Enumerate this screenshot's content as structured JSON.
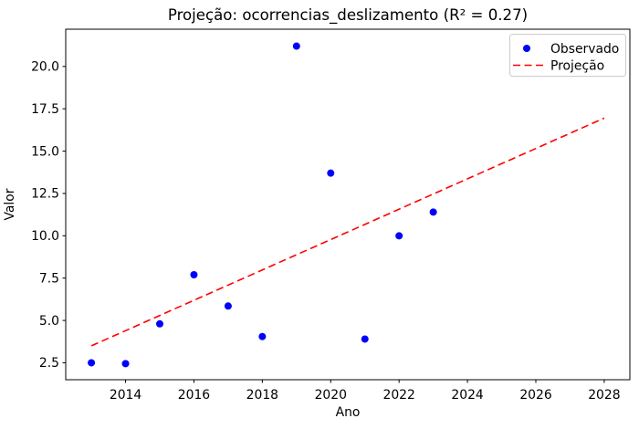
{
  "figure": {
    "title": "Projeção: ocorrencias_deslizamento (R² = 0.27)",
    "xlabel": "Ano",
    "ylabel": "Valor"
  },
  "legend": {
    "position": "upper-right",
    "items": [
      {
        "label": "Observado",
        "marker": "dot-icon",
        "color": "#0000ff"
      },
      {
        "label": "Projeção",
        "marker": "dashed-line-icon",
        "color": "#ff0000"
      }
    ]
  },
  "colors": {
    "observed": "#0000ff",
    "projection": "#ff0000",
    "spine": "#000000",
    "background": "#ffffff",
    "legend_border": "#cccccc"
  },
  "chart_data": {
    "type": "scatter",
    "title": "Projeção: ocorrencias_deslizamento (R² = 0.27)",
    "xlabel": "Ano",
    "ylabel": "Valor",
    "r_squared": 0.27,
    "grid": false,
    "xlim": [
      2012.25,
      2028.75
    ],
    "ylim": [
      1.5,
      22.2
    ],
    "x_ticks": [
      2014,
      2016,
      2018,
      2020,
      2022,
      2024,
      2026,
      2028
    ],
    "y_ticks": [
      2.5,
      5.0,
      7.5,
      10.0,
      12.5,
      15.0,
      17.5,
      20.0
    ],
    "series": [
      {
        "name": "Observado",
        "kind": "scatter",
        "color": "#0000ff",
        "x": [
          2013,
          2014,
          2015,
          2016,
          2017,
          2018,
          2019,
          2020,
          2021,
          2022,
          2023
        ],
        "y": [
          2.5,
          2.45,
          4.8,
          7.7,
          5.85,
          4.05,
          21.2,
          13.7,
          3.9,
          10.0,
          11.4
        ]
      },
      {
        "name": "Projeção",
        "kind": "line",
        "style": "dashed",
        "color": "#ff0000",
        "x": [
          2013,
          2028
        ],
        "y": [
          3.5,
          16.95
        ]
      }
    ]
  }
}
